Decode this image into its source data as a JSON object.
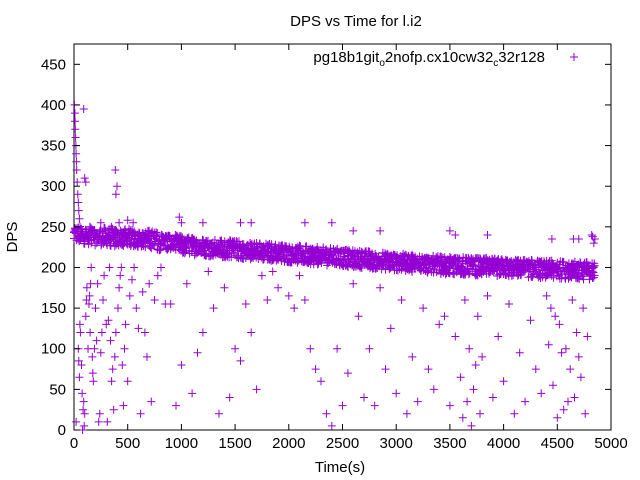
{
  "chart_data": {
    "type": "scatter",
    "title": "DPS vs Time for l.i2",
    "xlabel": "Time(s)",
    "ylabel": "DPS",
    "xlim": [
      0,
      5000
    ],
    "ylim": [
      0,
      475
    ],
    "xticks": [
      0,
      500,
      1000,
      1500,
      2000,
      2500,
      3000,
      3500,
      4000,
      4500,
      5000
    ],
    "yticks": [
      0,
      50,
      100,
      150,
      200,
      250,
      300,
      350,
      400,
      450
    ],
    "grid": false,
    "legend_position": "top-right",
    "marker": "+",
    "series": [
      {
        "name": "pg18b1git_o2nofp.cx10cw32_c32r128",
        "name_parts": [
          "pg18b1git",
          "o",
          "2nofp.cx10cw32",
          "c",
          "32r128"
        ],
        "color": "#9400d3",
        "band": [
          [
            0,
            240
          ],
          [
            100,
            240
          ],
          [
            200,
            238
          ],
          [
            300,
            238
          ],
          [
            400,
            236
          ],
          [
            500,
            237
          ],
          [
            600,
            236
          ],
          [
            700,
            235
          ],
          [
            800,
            232
          ],
          [
            900,
            230
          ],
          [
            1000,
            228
          ],
          [
            1100,
            226
          ],
          [
            1200,
            225
          ],
          [
            1300,
            224
          ],
          [
            1400,
            223
          ],
          [
            1500,
            222
          ],
          [
            1600,
            221
          ],
          [
            1700,
            220
          ],
          [
            1800,
            219
          ],
          [
            1900,
            218
          ],
          [
            2000,
            217
          ],
          [
            2100,
            216
          ],
          [
            2200,
            215
          ],
          [
            2300,
            214
          ],
          [
            2400,
            213
          ],
          [
            2500,
            212
          ],
          [
            2600,
            211
          ],
          [
            2700,
            210
          ],
          [
            2800,
            209
          ],
          [
            2900,
            208
          ],
          [
            3000,
            207
          ],
          [
            3100,
            206
          ],
          [
            3200,
            205
          ],
          [
            3300,
            204
          ],
          [
            3400,
            203
          ],
          [
            3500,
            202
          ],
          [
            3600,
            202
          ],
          [
            3700,
            201
          ],
          [
            3800,
            201
          ],
          [
            3900,
            200
          ],
          [
            4000,
            200
          ],
          [
            4100,
            199
          ],
          [
            4200,
            199
          ],
          [
            4300,
            198
          ],
          [
            4400,
            198
          ],
          [
            4500,
            197
          ],
          [
            4600,
            197
          ],
          [
            4700,
            196
          ],
          [
            4800,
            196
          ],
          [
            4850,
            196
          ]
        ],
        "points": [
          [
            5,
            400
          ],
          [
            8,
            390
          ],
          [
            10,
            380
          ],
          [
            12,
            370
          ],
          [
            15,
            360
          ],
          [
            18,
            350
          ],
          [
            20,
            340
          ],
          [
            22,
            330
          ],
          [
            25,
            320
          ],
          [
            30,
            305
          ],
          [
            35,
            290
          ],
          [
            40,
            280
          ],
          [
            45,
            270
          ],
          [
            50,
            260
          ],
          [
            90,
            395
          ],
          [
            100,
            310
          ],
          [
            110,
            305
          ],
          [
            385,
            320
          ],
          [
            390,
            290
          ],
          [
            400,
            300
          ],
          [
            150,
            250
          ],
          [
            250,
            255
          ],
          [
            350,
            250
          ],
          [
            420,
            255
          ],
          [
            500,
            258
          ],
          [
            550,
            255
          ],
          [
            980,
            262
          ],
          [
            1000,
            255
          ],
          [
            1200,
            255
          ],
          [
            1550,
            255
          ],
          [
            1650,
            255
          ],
          [
            2150,
            255
          ],
          [
            2400,
            255
          ],
          [
            2600,
            245
          ],
          [
            2850,
            245
          ],
          [
            3500,
            245
          ],
          [
            3550,
            240
          ],
          [
            3850,
            240
          ],
          [
            4450,
            235
          ],
          [
            4650,
            235
          ],
          [
            4700,
            235
          ],
          [
            4820,
            240
          ],
          [
            4830,
            238
          ],
          [
            4850,
            235
          ],
          [
            4840,
            230
          ],
          [
            20,
            10
          ],
          [
            40,
            100
          ],
          [
            45,
            85
          ],
          [
            50,
            65
          ],
          [
            55,
            130
          ],
          [
            60,
            120
          ],
          [
            70,
            80
          ],
          [
            75,
            45
          ],
          [
            80,
            0
          ],
          [
            85,
            25
          ],
          [
            90,
            35
          ],
          [
            95,
            5
          ],
          [
            100,
            20
          ],
          [
            110,
            140
          ],
          [
            115,
            160
          ],
          [
            120,
            175
          ],
          [
            130,
            100
          ],
          [
            140,
            155
          ],
          [
            145,
            165
          ],
          [
            150,
            120
          ],
          [
            155,
            180
          ],
          [
            160,
            200
          ],
          [
            170,
            90
          ],
          [
            175,
            70
          ],
          [
            180,
            60
          ],
          [
            190,
            100
          ],
          [
            200,
            150
          ],
          [
            210,
            110
          ],
          [
            220,
            180
          ],
          [
            230,
            10
          ],
          [
            240,
            20
          ],
          [
            250,
            95
          ],
          [
            260,
            120
          ],
          [
            270,
            160
          ],
          [
            280,
            190
          ],
          [
            300,
            130
          ],
          [
            310,
            10
          ],
          [
            320,
            135
          ],
          [
            330,
            200
          ],
          [
            340,
            110
          ],
          [
            350,
            60
          ],
          [
            360,
            75
          ],
          [
            370,
            25
          ],
          [
            380,
            90
          ],
          [
            390,
            120
          ],
          [
            410,
            150
          ],
          [
            420,
            175
          ],
          [
            430,
            190
          ],
          [
            440,
            200
          ],
          [
            450,
            80
          ],
          [
            460,
            30
          ],
          [
            470,
            100
          ],
          [
            480,
            130
          ],
          [
            500,
            60
          ],
          [
            520,
            165
          ],
          [
            540,
            185
          ],
          [
            560,
            200
          ],
          [
            580,
            150
          ],
          [
            600,
            125
          ],
          [
            620,
            20
          ],
          [
            640,
            170
          ],
          [
            660,
            120
          ],
          [
            680,
            90
          ],
          [
            700,
            180
          ],
          [
            720,
            35
          ],
          [
            750,
            160
          ],
          [
            780,
            190
          ],
          [
            810,
            200
          ],
          [
            850,
            155
          ],
          [
            900,
            155
          ],
          [
            950,
            30
          ],
          [
            1000,
            80
          ],
          [
            1050,
            180
          ],
          [
            1100,
            45
          ],
          [
            1150,
            95
          ],
          [
            1200,
            120
          ],
          [
            1250,
            195
          ],
          [
            1300,
            150
          ],
          [
            1350,
            20
          ],
          [
            1400,
            175
          ],
          [
            1450,
            40
          ],
          [
            1500,
            100
          ],
          [
            1550,
            85
          ],
          [
            1600,
            155
          ],
          [
            1650,
            120
          ],
          [
            1700,
            50
          ],
          [
            1750,
            190
          ],
          [
            1800,
            160
          ],
          [
            1850,
            195
          ],
          [
            1900,
            175
          ],
          [
            2000,
            165
          ],
          [
            2050,
            150
          ],
          [
            2100,
            190
          ],
          [
            2150,
            160
          ],
          [
            2200,
            100
          ],
          [
            2250,
            75
          ],
          [
            2300,
            60
          ],
          [
            2350,
            20
          ],
          [
            2400,
            5
          ],
          [
            2450,
            100
          ],
          [
            2500,
            30
          ],
          [
            2550,
            70
          ],
          [
            2600,
            180
          ],
          [
            2650,
            140
          ],
          [
            2700,
            40
          ],
          [
            2750,
            100
          ],
          [
            2800,
            30
          ],
          [
            2850,
            175
          ],
          [
            2900,
            75
          ],
          [
            2950,
            125
          ],
          [
            3000,
            45
          ],
          [
            3050,
            160
          ],
          [
            3100,
            20
          ],
          [
            3150,
            90
          ],
          [
            3200,
            35
          ],
          [
            3250,
            150
          ],
          [
            3300,
            75
          ],
          [
            3350,
            50
          ],
          [
            3400,
            130
          ],
          [
            3450,
            140
          ],
          [
            3500,
            30
          ],
          [
            3550,
            115
          ],
          [
            3600,
            65
          ],
          [
            3620,
            15
          ],
          [
            3640,
            160
          ],
          [
            3660,
            35
          ],
          [
            3680,
            100
          ],
          [
            3700,
            5
          ],
          [
            3720,
            50
          ],
          [
            3740,
            80
          ],
          [
            3760,
            140
          ],
          [
            3780,
            20
          ],
          [
            3800,
            90
          ],
          [
            3850,
            165
          ],
          [
            3900,
            40
          ],
          [
            3950,
            115
          ],
          [
            4000,
            60
          ],
          [
            4050,
            155
          ],
          [
            4100,
            20
          ],
          [
            4150,
            95
          ],
          [
            4200,
            35
          ],
          [
            4250,
            135
          ],
          [
            4300,
            75
          ],
          [
            4350,
            45
          ],
          [
            4400,
            165
          ],
          [
            4420,
            105
          ],
          [
            4440,
            150
          ],
          [
            4460,
            55
          ],
          [
            4480,
            140
          ],
          [
            4500,
            15
          ],
          [
            4520,
            130
          ],
          [
            4540,
            95
          ],
          [
            4560,
            25
          ],
          [
            4580,
            100
          ],
          [
            4600,
            35
          ],
          [
            4620,
            75
          ],
          [
            4640,
            160
          ],
          [
            4660,
            40
          ],
          [
            4680,
            120
          ],
          [
            4700,
            90
          ],
          [
            4720,
            65
          ],
          [
            4740,
            150
          ],
          [
            4760,
            20
          ],
          [
            4780,
            115
          ]
        ]
      }
    ]
  }
}
